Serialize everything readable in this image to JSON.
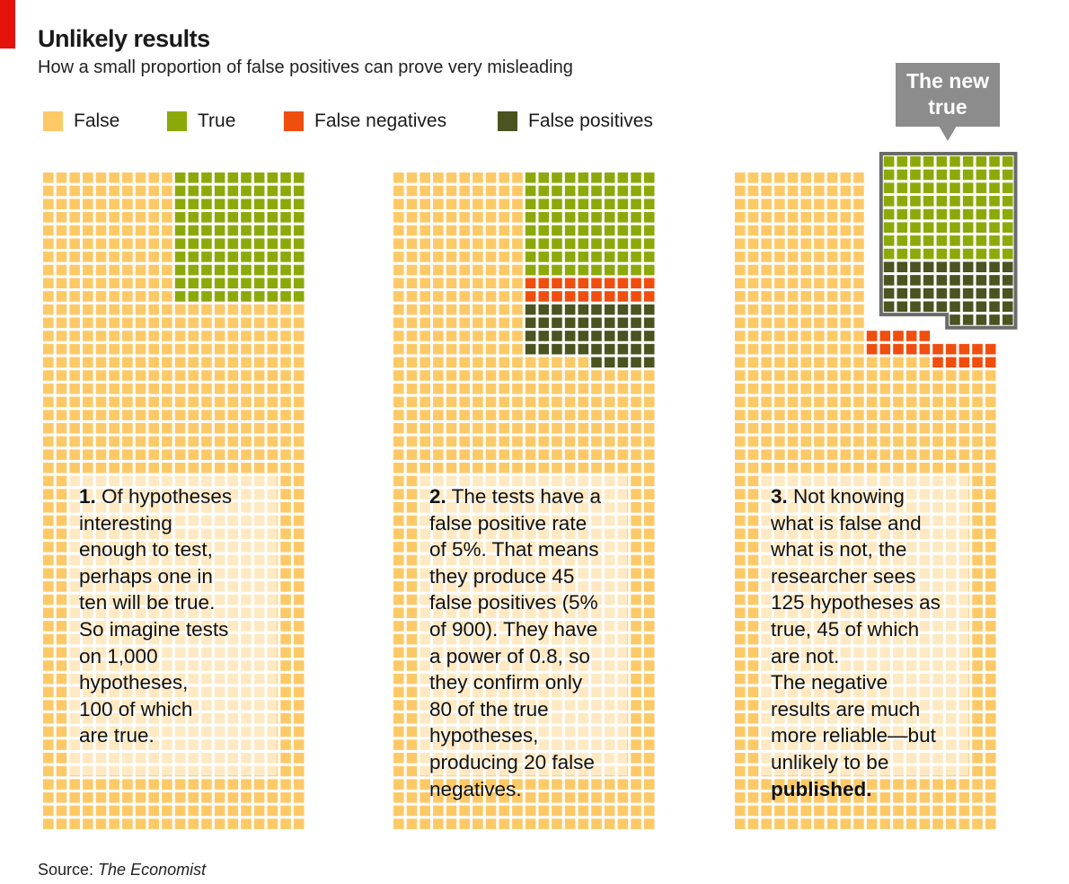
{
  "title": "Unlikely results",
  "subtitle": "How a small proportion of false positives can prove very misleading",
  "legend": [
    {
      "label": "False",
      "color": "#fdc967"
    },
    {
      "label": "True",
      "color": "#8ca90a"
    },
    {
      "label": "False negatives",
      "color": "#f04e0f"
    },
    {
      "label": "False positives",
      "color": "#4b5320"
    }
  ],
  "callout": {
    "line1": "The new",
    "line2": "true"
  },
  "notes": [
    {
      "num": "1.",
      "lines": [
        "Of hypotheses",
        "interesting",
        "enough to test,",
        "perhaps one in",
        "ten will be true.",
        "So imagine tests",
        "on 1,000",
        "hypotheses,",
        "100 of which",
        "are true."
      ]
    },
    {
      "num": "2.",
      "lines": [
        "The tests have a",
        "false positive rate",
        "of 5%. That means",
        "they produce 45",
        "false positives (5%",
        "of 900). They have",
        "a power of 0.8, so",
        "they confirm only",
        "80 of the true",
        "hypotheses,",
        "producing 20 false",
        "negatives."
      ]
    },
    {
      "num": "3.",
      "lines": [
        "Not knowing",
        "what is false and",
        "what is not, the",
        "researcher sees",
        "125 hypotheses as",
        "true, 45 of which",
        "are not.",
        "The negative",
        "results are much",
        "more reliable—but",
        "unlikely to be",
        "published."
      ]
    }
  ],
  "source": {
    "label": "Source: ",
    "name": "The Economist"
  },
  "chart_data": {
    "type": "waffle",
    "total_per_panel": 1000,
    "grid": {
      "columns": 20,
      "rows": 50
    },
    "panels": [
      {
        "false": 900,
        "true": 100,
        "false_negatives": 0,
        "false_positives": 0
      },
      {
        "false": 855,
        "true": 80,
        "false_negatives": 20,
        "false_positives": 45
      },
      {
        "false": 855,
        "true": 80,
        "false_negatives": 20,
        "false_positives": 45,
        "highlighted_as_true": 125
      }
    ]
  }
}
